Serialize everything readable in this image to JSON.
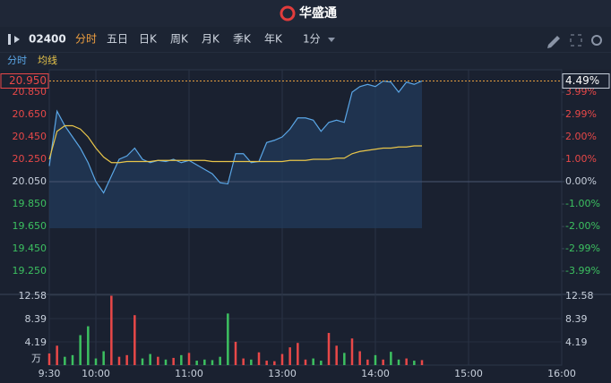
{
  "header": {
    "logo": "华盛通"
  },
  "toolbar": {
    "code": "02400",
    "tabs": [
      "分时",
      "五日",
      "日K",
      "周K",
      "月K",
      "季K",
      "年K"
    ],
    "interval": "1分"
  },
  "chart_data": {
    "type": "line",
    "categories": [
      "9:30",
      null,
      null,
      null,
      null,
      null,
      "10:00",
      null,
      null,
      null,
      null,
      null,
      null,
      null,
      null,
      null,
      null,
      null,
      "11:00",
      null,
      null,
      null,
      null,
      null,
      null,
      null,
      null,
      null,
      null,
      null,
      "13:00",
      null,
      null,
      null,
      null,
      null,
      null,
      null,
      null,
      null,
      null,
      null,
      "14:00",
      null,
      null,
      null,
      null,
      null,
      null,
      null,
      null,
      null,
      null,
      null,
      "15:00",
      null,
      null,
      null,
      null,
      null,
      null,
      null,
      null,
      null,
      null,
      null,
      "16:00"
    ],
    "series": [
      {
        "name": "分时",
        "color": "#5aa6e6",
        "values": [
          20.19,
          20.68,
          20.55,
          20.45,
          20.35,
          20.22,
          20.05,
          19.95,
          20.1,
          20.25,
          20.28,
          20.35,
          20.25,
          20.22,
          20.24,
          20.23,
          20.25,
          20.22,
          20.24,
          20.2,
          20.16,
          20.12,
          20.04,
          20.03,
          20.3,
          20.3,
          20.22,
          20.23,
          20.4,
          20.42,
          20.45,
          20.52,
          20.62,
          20.62,
          20.6,
          20.5,
          20.58,
          20.6,
          20.58,
          20.85,
          20.9,
          20.92,
          20.9,
          20.95,
          20.94,
          20.85,
          20.94,
          20.92,
          20.95,
          null,
          null,
          null,
          null,
          null,
          null,
          null,
          null,
          null,
          null,
          null,
          null,
          null,
          null,
          null,
          null,
          null,
          null
        ]
      },
      {
        "name": "均线",
        "color": "#e8c54a",
        "values": [
          20.25,
          20.5,
          20.55,
          20.55,
          20.52,
          20.45,
          20.35,
          20.27,
          20.22,
          20.22,
          20.23,
          20.23,
          20.23,
          20.23,
          20.24,
          20.24,
          20.24,
          20.24,
          20.24,
          20.24,
          20.24,
          20.23,
          20.23,
          20.23,
          20.23,
          20.23,
          20.23,
          20.23,
          20.23,
          20.23,
          20.23,
          20.24,
          20.24,
          20.24,
          20.25,
          20.25,
          20.25,
          20.26,
          20.26,
          20.3,
          20.32,
          20.33,
          20.34,
          20.35,
          20.35,
          20.36,
          20.36,
          20.37,
          20.37,
          null,
          null,
          null,
          null,
          null,
          null,
          null,
          null,
          null,
          null,
          null,
          null,
          null,
          null,
          null,
          null,
          null,
          null
        ]
      }
    ],
    "ylim": [
      19.05,
      21.05
    ],
    "yticks": [
      {
        "value": 20.85,
        "label": "20.850"
      },
      {
        "value": 20.65,
        "label": "20.650"
      },
      {
        "value": 20.45,
        "label": "20.450"
      },
      {
        "value": 20.25,
        "label": "20.250"
      },
      {
        "value": 20.05,
        "label": "20.050"
      },
      {
        "value": 19.85,
        "label": "19.850"
      },
      {
        "value": 19.65,
        "label": "19.650"
      },
      {
        "value": 19.45,
        "label": "19.450"
      },
      {
        "value": 19.25,
        "label": "19.250"
      }
    ],
    "y2lim": [
      -4.99,
      4.99
    ],
    "y2ticks": [
      {
        "value": 3.99,
        "label": "3.99%"
      },
      {
        "value": 2.99,
        "label": "2.99%"
      },
      {
        "value": 2.0,
        "label": "2.00%"
      },
      {
        "value": 1.0,
        "label": "1.00%"
      },
      {
        "value": 0,
        "label": "0.00%"
      },
      {
        "value": -1.0,
        "label": "-1.00%"
      },
      {
        "value": -2.0,
        "label": "-2.00%"
      },
      {
        "value": -2.99,
        "label": "-2.99%"
      },
      {
        "value": -3.99,
        "label": "-3.99%"
      }
    ],
    "current_price": {
      "value": 20.95,
      "label": "20.950"
    },
    "current_change": {
      "value": 4.49,
      "label": "4.49%"
    },
    "up_color": "#e84848",
    "down_color": "#3cc060",
    "volume": {
      "values": [
        2.1,
        3.5,
        1.5,
        1.8,
        5.4,
        7.0,
        1.2,
        2.5,
        12.5,
        1.5,
        1.8,
        9.0,
        1.2,
        2.0,
        1.5,
        1.0,
        1.3,
        1.8,
        2.2,
        0.8,
        1.0,
        0.9,
        1.5,
        9.3,
        4.2,
        1.2,
        1.0,
        2.3,
        0.8,
        0.7,
        2.0,
        3.2,
        4.0,
        1.0,
        1.2,
        0.8,
        5.8,
        3.5,
        2.2,
        4.8,
        2.5,
        1.0,
        1.8,
        1.0,
        2.4,
        1.0,
        1.2,
        0.8,
        0.9,
        null,
        null,
        null,
        null,
        null,
        null,
        null,
        null,
        null,
        null,
        null,
        null,
        null,
        null,
        null,
        null,
        null,
        null
      ],
      "ylim": [
        0,
        12.58
      ],
      "yticks": [
        12.58,
        8.39,
        4.19
      ],
      "unit": "万"
    }
  }
}
